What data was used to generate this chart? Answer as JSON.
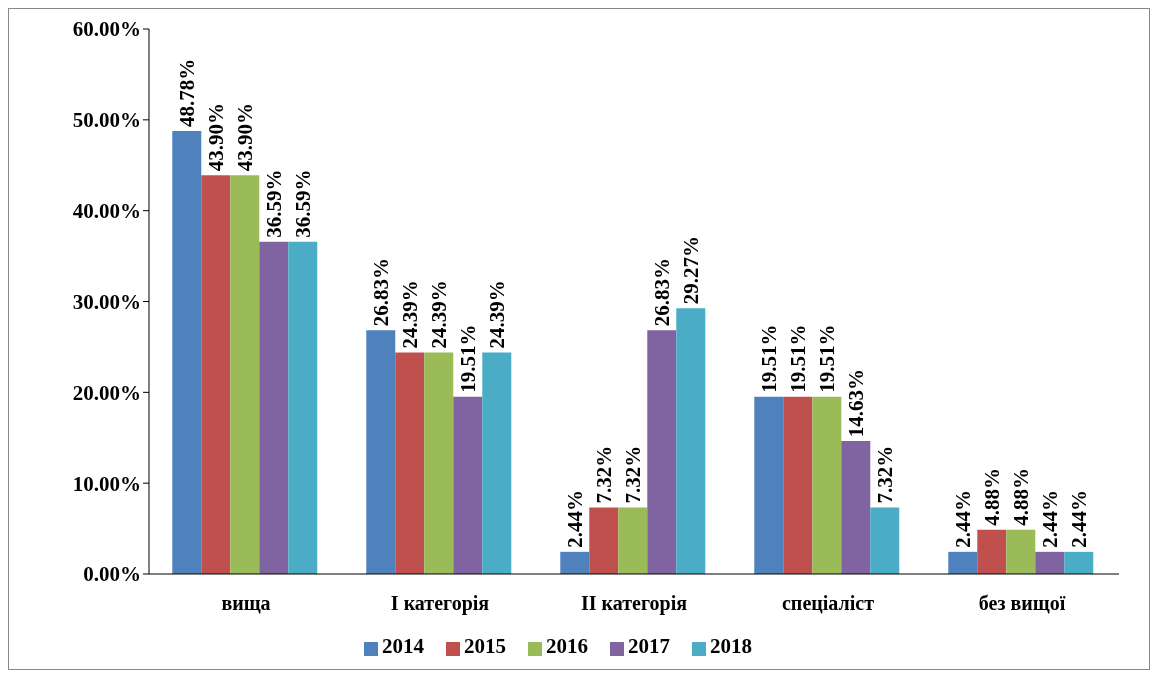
{
  "chart_data": {
    "type": "bar",
    "categories": [
      "вища",
      "І категорія",
      "ІІ категорія",
      "спеціаліст",
      "без вищої"
    ],
    "series": [
      {
        "name": "2014",
        "color": "#4f81bd",
        "values": [
          48.78,
          26.83,
          2.44,
          19.51,
          2.44
        ],
        "value_labels": [
          "48.78%",
          "26.83%",
          "2.44%",
          "19.51%",
          "2.44%"
        ]
      },
      {
        "name": "2015",
        "color": "#c0504d",
        "values": [
          43.9,
          24.39,
          7.32,
          19.51,
          4.88
        ],
        "value_labels": [
          "43.90%",
          "24.39%",
          "7.32%",
          "19.51%",
          "4.88%"
        ]
      },
      {
        "name": "2016",
        "color": "#9bbb59",
        "values": [
          43.9,
          24.39,
          7.32,
          19.51,
          4.88
        ],
        "value_labels": [
          "43.90%",
          "24.39%",
          "7.32%",
          "19.51%",
          "4.88%"
        ]
      },
      {
        "name": "2017",
        "color": "#8064a2",
        "values": [
          36.59,
          19.51,
          26.83,
          14.63,
          2.44
        ],
        "value_labels": [
          "36.59%",
          "19.51%",
          "26.83%",
          "14.63%",
          "2.44%"
        ]
      },
      {
        "name": "2018",
        "color": "#4bacc6",
        "values": [
          36.59,
          24.39,
          29.27,
          7.32,
          2.44
        ],
        "value_labels": [
          "36.59%",
          "24.39%",
          "29.27%",
          "7.32%",
          "2.44%"
        ]
      }
    ],
    "ylim": [
      0,
      60
    ],
    "yticks": [
      {
        "value": 0,
        "label": "0.00%"
      },
      {
        "value": 10,
        "label": "10.00%"
      },
      {
        "value": 20,
        "label": "20.00%"
      },
      {
        "value": 30,
        "label": "30.00%"
      },
      {
        "value": 40,
        "label": "40.00%"
      },
      {
        "value": 50,
        "label": "50.00%"
      },
      {
        "value": 60,
        "label": "60.00%"
      }
    ],
    "grid": false,
    "legend": "bottom"
  }
}
